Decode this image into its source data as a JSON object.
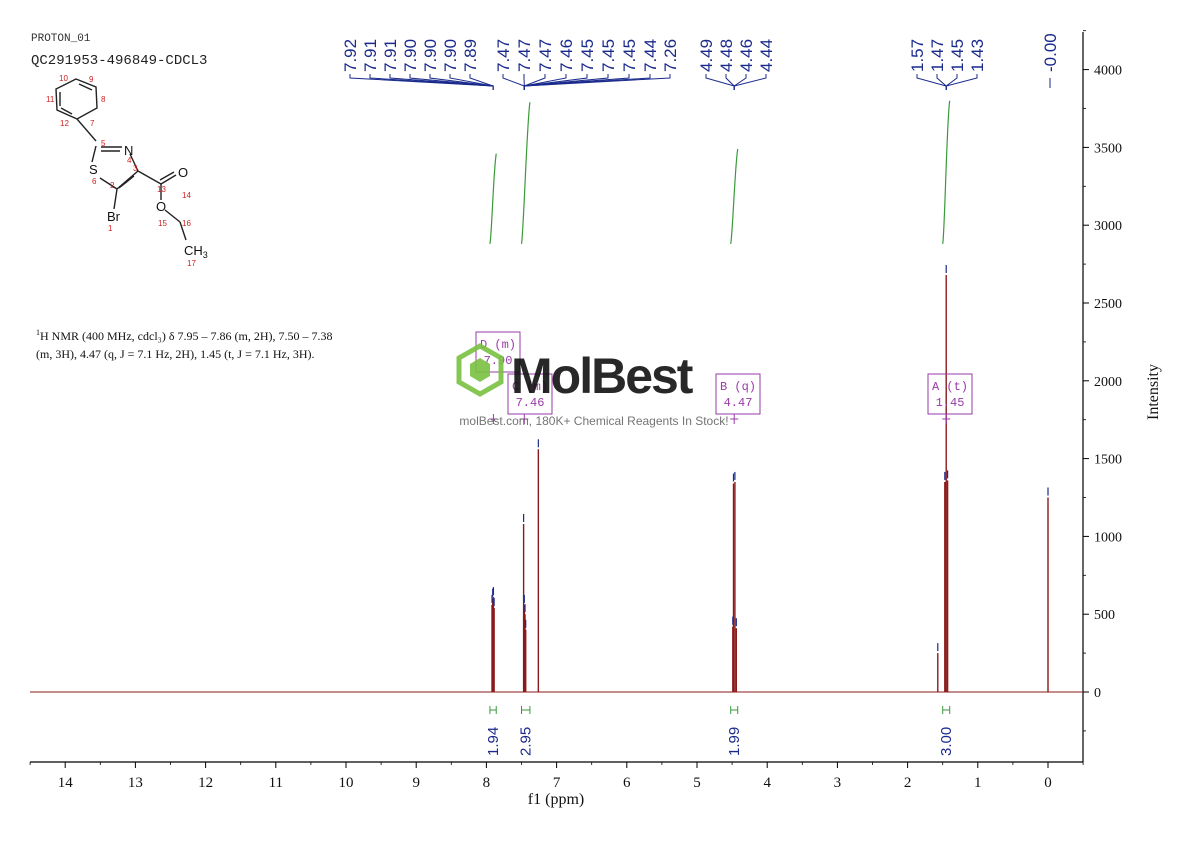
{
  "header": {
    "experiment": "PROTON_01",
    "sample_id": "QC291953-496849-CDCL3"
  },
  "structure": {
    "atom_labels": {
      "S": "S",
      "N": "N",
      "Br": "Br",
      "O_carbonyl": "O",
      "O_ester": "O",
      "CH3": "CH",
      "CH3_sub": "3"
    },
    "atom_numbers": [
      "1",
      "2",
      "3",
      "4",
      "5",
      "6",
      "7",
      "8",
      "9",
      "10",
      "11",
      "12",
      "13",
      "14",
      "15",
      "16",
      "17"
    ]
  },
  "nmr_text": {
    "nucleus_sup": "1",
    "line1": "H NMR (400 MHz, cdcl₃) δ 7.95 – 7.86 (m, 2H), 7.50 – 7.38",
    "line2": "(m, 3H), 4.47 (q, J = 7.1 Hz, 2H), 1.45 (t, J = 7.1 Hz, 3H)."
  },
  "watermark": {
    "brand": "MolBest",
    "tagline": "molBest.com, 180K+ Chemical Reagents In Stock!"
  },
  "chart_data": {
    "type": "line",
    "xlabel": "f1 (ppm)",
    "ylabel": "Intensity",
    "xlim": [
      14.5,
      -0.5
    ],
    "ylim": [
      -450,
      4300
    ],
    "x_reversed": true,
    "x_ticks": [
      "14",
      "13",
      "12",
      "11",
      "10",
      "9",
      "8",
      "7",
      "6",
      "5",
      "4",
      "3",
      "2",
      "1",
      "0"
    ],
    "y_ticks": [
      "0",
      "500",
      "1000",
      "1500",
      "2000",
      "2500",
      "3000",
      "3500",
      "4000"
    ],
    "peaks": [
      {
        "ppm": 7.92,
        "height": 560
      },
      {
        "ppm": 7.91,
        "height": 600
      },
      {
        "ppm": 7.9,
        "height": 610
      },
      {
        "ppm": 7.89,
        "height": 540
      },
      {
        "ppm": 7.47,
        "height": 1080
      },
      {
        "ppm": 7.46,
        "height": 560
      },
      {
        "ppm": 7.45,
        "height": 500
      },
      {
        "ppm": 7.44,
        "height": 400
      },
      {
        "ppm": 7.26,
        "height": 1560
      },
      {
        "ppm": 4.49,
        "height": 420
      },
      {
        "ppm": 4.48,
        "height": 1340
      },
      {
        "ppm": 4.46,
        "height": 1350
      },
      {
        "ppm": 4.44,
        "height": 410
      },
      {
        "ppm": 1.57,
        "height": 250
      },
      {
        "ppm": 1.47,
        "height": 1350
      },
      {
        "ppm": 1.45,
        "height": 2680
      },
      {
        "ppm": 1.43,
        "height": 1360
      },
      {
        "ppm": 0.0,
        "height": 1250
      }
    ],
    "peak_labels": [
      {
        "group": 1,
        "items": [
          "7.92",
          "7.91",
          "7.91",
          "7.90",
          "7.90",
          "7.90",
          "7.89"
        ]
      },
      {
        "group": 2,
        "items": [
          "7.47",
          "7.47",
          "7.47",
          "7.46",
          "7.45",
          "7.45",
          "7.45",
          "7.44",
          "7.26"
        ]
      },
      {
        "group": 3,
        "items": [
          "4.49",
          "4.48",
          "4.46",
          "4.44"
        ]
      },
      {
        "group": 4,
        "items": [
          "1.57",
          "1.47",
          "1.45",
          "1.43"
        ]
      },
      {
        "group": 5,
        "items": [
          "-0.00"
        ]
      }
    ],
    "integrals": [
      {
        "from": 7.95,
        "to": 7.86,
        "value": "1.94",
        "curve_bottom": 2880,
        "curve_top": 3460
      },
      {
        "from": 7.5,
        "to": 7.38,
        "value": "2.95",
        "curve_bottom": 2880,
        "curve_top": 3790
      },
      {
        "from": 4.52,
        "to": 4.42,
        "value": "1.99",
        "curve_bottom": 2880,
        "curve_top": 3490
      },
      {
        "from": 1.5,
        "to": 1.4,
        "value": "3.00",
        "curve_bottom": 2880,
        "curve_top": 3800
      }
    ],
    "multiplets": [
      {
        "label": "D (m)",
        "shift": "7.90",
        "ppm": 7.9
      },
      {
        "label": "C (m)",
        "shift": "7.46",
        "ppm": 7.46
      },
      {
        "label": "B (q)",
        "shift": "4.47",
        "ppm": 4.47
      },
      {
        "label": "A (t)",
        "shift": "1.45",
        "ppm": 1.45
      }
    ],
    "colors": {
      "spectrum": "#8b1a1a",
      "peak_label": "#1a2a8c",
      "integral": "#3a9a3a",
      "multiplet": "#9a3aa8",
      "axis": "#000000"
    }
  }
}
